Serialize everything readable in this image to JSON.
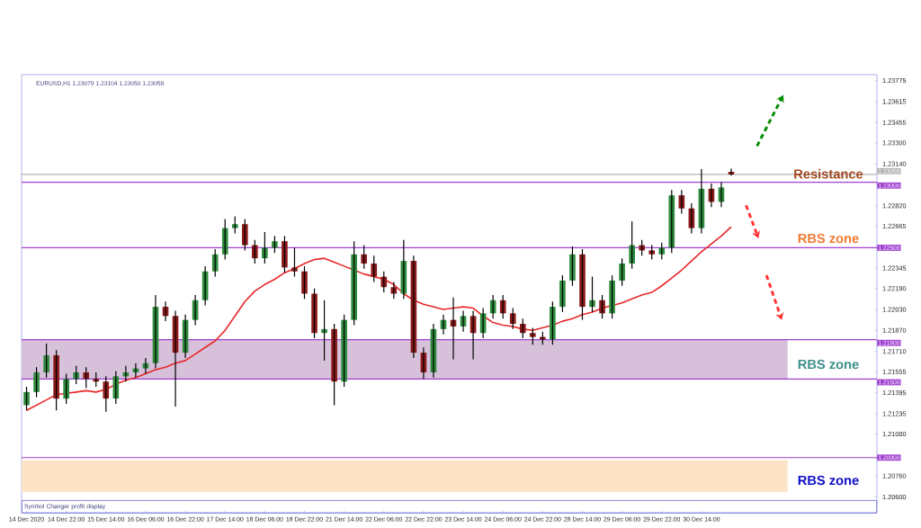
{
  "chart_data": {
    "type": "candlestick",
    "title": "EURUSD,H1  1.23079 1.23104 1.23050 1.23059",
    "categories": [
      "14 Dec 2020",
      null,
      null,
      null,
      "14 Dec 22:00",
      null,
      null,
      null,
      "15 Dec 14:00",
      null,
      null,
      null,
      "16 Dec 06:00",
      null,
      null,
      null,
      "16 Dec 22:00",
      null,
      null,
      null,
      "17 Dec 14:00",
      null,
      null,
      null,
      "18 Dec 06:00",
      null,
      null,
      null,
      "18 Dec 22:00",
      null,
      null,
      null,
      "21 Dec 14:00",
      null,
      null,
      null,
      "22 Dec 06:00",
      null,
      null,
      null,
      "22 Dec 22:00",
      null,
      null,
      null,
      "23 Dec 14:00",
      null,
      null,
      null,
      "24 Dec 06:00",
      null,
      null,
      null,
      "24 Dec 22:00",
      null,
      null,
      null,
      "28 Dec 14:00",
      null,
      null,
      null,
      "29 Dec 06:00",
      null,
      null,
      null,
      "29 Dec 22:00",
      null,
      null,
      null,
      "30 Dec 14:00",
      null,
      null,
      null
    ],
    "ohlc": [
      [
        1.213,
        1.2144,
        1.2126,
        1.214
      ],
      [
        1.214,
        1.2159,
        1.2136,
        1.2155
      ],
      [
        1.2155,
        1.2177,
        1.2151,
        1.2168
      ],
      [
        1.2168,
        1.2172,
        1.2126,
        1.2135
      ],
      [
        1.2135,
        1.2154,
        1.2131,
        1.215
      ],
      [
        1.215,
        1.216,
        1.2146,
        1.2155
      ],
      [
        1.2155,
        1.2159,
        1.2143,
        1.215
      ],
      [
        1.215,
        1.2155,
        1.2144,
        1.2148
      ],
      [
        1.2148,
        1.2152,
        1.2125,
        1.2135
      ],
      [
        1.2135,
        1.2156,
        1.2131,
        1.2152
      ],
      [
        1.2152,
        1.216,
        1.2148,
        1.2155
      ],
      [
        1.2155,
        1.2162,
        1.2151,
        1.2158
      ],
      [
        1.2158,
        1.2166,
        1.2154,
        1.2162
      ],
      [
        1.2162,
        1.2214,
        1.2158,
        1.2205
      ],
      [
        1.2205,
        1.2209,
        1.2194,
        1.2198
      ],
      [
        1.2198,
        1.2202,
        1.2129,
        1.217
      ],
      [
        1.217,
        1.2199,
        1.2166,
        1.2195
      ],
      [
        1.2195,
        1.2214,
        1.2191,
        1.221
      ],
      [
        1.221,
        1.2236,
        1.2206,
        1.2232
      ],
      [
        1.2232,
        1.2249,
        1.2228,
        1.2245
      ],
      [
        1.2245,
        1.2272,
        1.2241,
        1.2265
      ],
      [
        1.2265,
        1.2274,
        1.2261,
        1.2268
      ],
      [
        1.2268,
        1.2272,
        1.2248,
        1.2252
      ],
      [
        1.2252,
        1.2256,
        1.2238,
        1.2242
      ],
      [
        1.2242,
        1.2262,
        1.2238,
        1.225
      ],
      [
        1.225,
        1.2259,
        1.2246,
        1.2255
      ],
      [
        1.2255,
        1.2259,
        1.2231,
        1.2235
      ],
      [
        1.2235,
        1.225,
        1.2228,
        1.2232
      ],
      [
        1.2232,
        1.2236,
        1.2211,
        1.2215
      ],
      [
        1.2215,
        1.2219,
        1.2181,
        1.2185
      ],
      [
        1.2185,
        1.221,
        1.2164,
        1.2188
      ],
      [
        1.2188,
        1.2192,
        1.213,
        1.2148
      ],
      [
        1.2148,
        1.2199,
        1.2144,
        1.2195
      ],
      [
        1.2195,
        1.2255,
        1.2191,
        1.2245
      ],
      [
        1.2245,
        1.2252,
        1.2234,
        1.2238
      ],
      [
        1.2238,
        1.2244,
        1.2224,
        1.2228
      ],
      [
        1.2228,
        1.2232,
        1.2216,
        1.222
      ],
      [
        1.222,
        1.2224,
        1.2211,
        1.2215
      ],
      [
        1.2215,
        1.2256,
        1.2211,
        1.224
      ],
      [
        1.224,
        1.2244,
        1.2166,
        1.217
      ],
      [
        1.217,
        1.2174,
        1.215,
        1.2155
      ],
      [
        1.2155,
        1.2192,
        1.2151,
        1.2188
      ],
      [
        1.2188,
        1.2199,
        1.2184,
        1.2195
      ],
      [
        1.2195,
        1.2212,
        1.2165,
        1.219
      ],
      [
        1.219,
        1.2202,
        1.2186,
        1.2198
      ],
      [
        1.2198,
        1.2202,
        1.2165,
        1.2185
      ],
      [
        1.2185,
        1.2204,
        1.2181,
        1.22
      ],
      [
        1.22,
        1.2214,
        1.2196,
        1.221
      ],
      [
        1.221,
        1.2214,
        1.2196,
        1.22
      ],
      [
        1.22,
        1.2204,
        1.2188,
        1.2192
      ],
      [
        1.2192,
        1.2196,
        1.2181,
        1.2185
      ],
      [
        1.2185,
        1.2189,
        1.2176,
        1.2182
      ],
      [
        1.2182,
        1.2186,
        1.2176,
        1.218
      ],
      [
        1.218,
        1.2209,
        1.2176,
        1.2205
      ],
      [
        1.2205,
        1.2229,
        1.2201,
        1.2225
      ],
      [
        1.2225,
        1.2251,
        1.2221,
        1.2245
      ],
      [
        1.2245,
        1.2249,
        1.2195,
        1.2205
      ],
      [
        1.2205,
        1.2228,
        1.2201,
        1.221
      ],
      [
        1.221,
        1.2214,
        1.2196,
        1.22
      ],
      [
        1.22,
        1.2229,
        1.2196,
        1.2225
      ],
      [
        1.2225,
        1.2242,
        1.2221,
        1.2238
      ],
      [
        1.2238,
        1.227,
        1.2234,
        1.2252
      ],
      [
        1.2252,
        1.2256,
        1.2244,
        1.2248
      ],
      [
        1.2248,
        1.2252,
        1.2241,
        1.2245
      ],
      [
        1.2245,
        1.2254,
        1.2241,
        1.225
      ],
      [
        1.225,
        1.2294,
        1.2246,
        1.229
      ],
      [
        1.229,
        1.2294,
        1.2276,
        1.228
      ],
      [
        1.228,
        1.2284,
        1.2261,
        1.2265
      ],
      [
        1.2265,
        1.231,
        1.2261,
        1.2295
      ],
      [
        1.2295,
        1.2299,
        1.2281,
        1.2285
      ],
      [
        1.2285,
        1.23,
        1.2281,
        1.2296
      ],
      [
        1.23079,
        1.23104,
        1.2305,
        1.23059
      ]
    ],
    "series": [
      {
        "type": "line",
        "color": "#e8282a",
        "values": [
          1.2126,
          1.213,
          1.2134,
          1.2138,
          1.2139,
          1.214,
          1.2141,
          1.214,
          1.2142,
          1.2146,
          1.2149,
          1.2151,
          1.2154,
          1.2157,
          1.2159,
          1.2162,
          1.2164,
          1.2169,
          1.2174,
          1.2179,
          1.2187,
          1.2198,
          1.2209,
          1.2217,
          1.2222,
          1.2226,
          1.2231,
          1.2234,
          1.2238,
          1.2241,
          1.2242,
          1.2239,
          1.2236,
          1.2233,
          1.223,
          1.2228,
          1.2226,
          1.2222,
          1.2215,
          1.221,
          1.2207,
          1.2205,
          1.2203,
          1.2204,
          1.2205,
          1.2204,
          1.2198,
          1.2193,
          1.2191,
          1.219,
          1.2188,
          1.2187,
          1.2189,
          1.2191,
          1.2194,
          1.2196,
          1.2199,
          1.2201,
          1.2204,
          1.2206,
          1.2208,
          1.2211,
          1.2214,
          1.2216,
          1.2221,
          1.2227,
          1.2233,
          1.224,
          1.2247,
          1.2253,
          1.2259,
          1.2266
        ]
      }
    ],
    "ylim": [
      1.2048,
      1.2382
    ],
    "yticks": [
      {
        "value": 1.23775,
        "label": "1.23775"
      },
      {
        "value": 1.23615,
        "label": "1.23615"
      },
      {
        "value": 1.23455,
        "label": "1.23455"
      },
      {
        "value": 1.233,
        "label": "1.23300"
      },
      {
        "value": 1.2314,
        "label": "1.23140"
      },
      {
        "value": 1.2282,
        "label": "1.22820"
      },
      {
        "value": 1.22665,
        "label": "1.22665"
      },
      {
        "value": 1.22345,
        "label": "1.22345"
      },
      {
        "value": 1.2219,
        "label": "1.22190"
      },
      {
        "value": 1.2203,
        "label": "1.22030"
      },
      {
        "value": 1.2187,
        "label": "1.21870"
      },
      {
        "value": 1.2171,
        "label": "1.21710"
      },
      {
        "value": 1.21555,
        "label": "1.21555"
      },
      {
        "value": 1.21395,
        "label": "1.21395"
      },
      {
        "value": 1.21235,
        "label": "1.21235"
      },
      {
        "value": 1.2108,
        "label": "1.21080"
      },
      {
        "value": 1.2076,
        "label": "1.20760"
      },
      {
        "value": 1.206,
        "label": "1.20600"
      }
    ],
    "ref_lines": [
      {
        "axis": "y",
        "value": 1.23059,
        "label": "1.23059",
        "color": "#b4b4b4"
      },
      {
        "axis": "y",
        "value": 1.23,
        "label": "1.23000",
        "color": "#a040d0"
      },
      {
        "axis": "y",
        "value": 1.225,
        "label": "1.22500",
        "color": "#a040d0"
      },
      {
        "axis": "y",
        "value": 1.218,
        "label": "1.21800",
        "color": "#a040d0"
      },
      {
        "axis": "y",
        "value": 1.215,
        "label": "1.21500",
        "color": "#a040d0"
      },
      {
        "axis": "y",
        "value": 1.209,
        "label": "1.20900",
        "color": "#a040d0"
      }
    ],
    "bands": [
      {
        "axis": "y",
        "from": 1.215,
        "to": 1.218,
        "color": "#d7c0da"
      },
      {
        "axis": "y",
        "from": 1.2064,
        "to": 1.2088,
        "color": "#fde3c6"
      }
    ],
    "annotations": [
      {
        "text": "Resistance",
        "y": 1.23064
      },
      "RBS zone",
      "RBS zone",
      "RBS zone",
      "Symbol Changer profit display"
    ]
  }
}
